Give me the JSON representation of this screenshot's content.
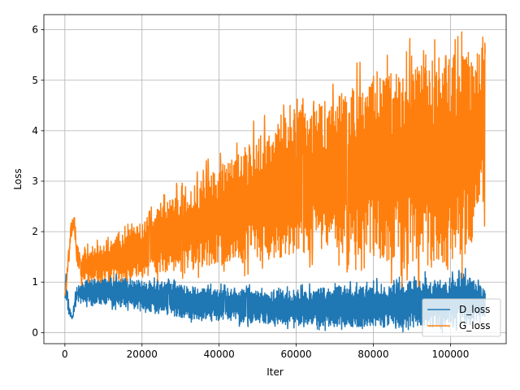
{
  "chart_data": {
    "type": "line",
    "xlabel": "Iter",
    "ylabel": "Loss",
    "xlim": [
      -5450,
      114450
    ],
    "ylim": [
      -0.22,
      6.3
    ],
    "x_ticks": [
      0,
      20000,
      40000,
      60000,
      80000,
      100000
    ],
    "x_tick_labels": [
      "0",
      "20000",
      "40000",
      "60000",
      "80000",
      "100000"
    ],
    "y_ticks": [
      0,
      1,
      2,
      3,
      4,
      5,
      6
    ],
    "y_tick_labels": [
      "0",
      "1",
      "2",
      "3",
      "4",
      "5",
      "6"
    ],
    "grid": true,
    "legend_position": "lower right",
    "series": [
      {
        "name": "D_loss",
        "color": "#1f77b4",
        "x": [
          0,
          500,
          1000,
          1500,
          2000,
          2500,
          3000,
          4000,
          6000,
          10000,
          15000,
          20000,
          30000,
          40000,
          50000,
          60000,
          70000,
          80000,
          90000,
          100000,
          105000,
          109000
        ],
        "upper": [
          1.4,
          1.1,
          0.6,
          0.4,
          0.35,
          0.75,
          0.9,
          1.0,
          1.05,
          1.1,
          1.08,
          1.05,
          0.95,
          0.9,
          0.85,
          0.85,
          0.9,
          0.95,
          1.05,
          1.1,
          1.2,
          0.8
        ],
        "lower": [
          0.7,
          0.55,
          0.35,
          0.22,
          0.25,
          0.45,
          0.55,
          0.55,
          0.55,
          0.55,
          0.5,
          0.45,
          0.3,
          0.22,
          0.18,
          0.15,
          0.12,
          0.1,
          0.1,
          0.1,
          0.15,
          0.3
        ]
      },
      {
        "name": "G_loss",
        "color": "#ff7f0e",
        "x": [
          0,
          500,
          1000,
          1500,
          2000,
          2500,
          3000,
          4000,
          6000,
          10000,
          15000,
          20000,
          30000,
          40000,
          50000,
          60000,
          70000,
          80000,
          90000,
          100000,
          105000,
          109000
        ],
        "upper": [
          0.8,
          1.2,
          1.7,
          2.1,
          2.38,
          2.3,
          1.9,
          1.55,
          1.7,
          1.8,
          1.95,
          2.2,
          2.8,
          3.3,
          3.9,
          4.4,
          4.7,
          5.0,
          5.3,
          5.5,
          5.6,
          5.55
        ],
        "lower": [
          0.7,
          0.9,
          1.3,
          1.7,
          2.0,
          1.8,
          1.4,
          1.0,
          1.0,
          1.05,
          1.05,
          1.1,
          1.2,
          1.3,
          1.4,
          1.5,
          1.6,
          1.5,
          1.3,
          1.3,
          1.6,
          2.5
        ]
      }
    ]
  }
}
